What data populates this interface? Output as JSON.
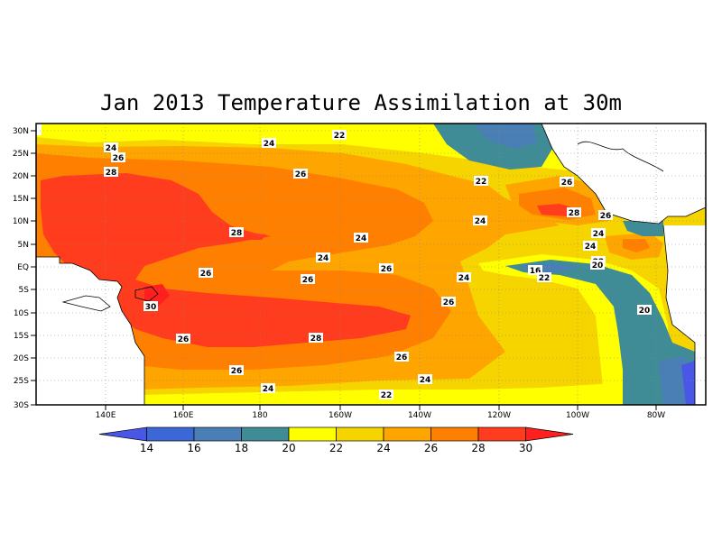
{
  "title": "Jan 2013 Temperature Assimilation at 30m",
  "map": {
    "lat_ticks": [
      "30N",
      "25N",
      "20N",
      "15N",
      "10N",
      "5N",
      "EQ",
      "5S",
      "10S",
      "15S",
      "20S",
      "25S",
      "30S"
    ],
    "lon_ticks": [
      "140E",
      "160E",
      "180",
      "160W",
      "140W",
      "120W",
      "100W",
      "80W"
    ],
    "contour_labels": [
      {
        "text": "24"
      },
      {
        "text": "26"
      },
      {
        "text": "28"
      },
      {
        "text": "24"
      },
      {
        "text": "22"
      },
      {
        "text": "26"
      },
      {
        "text": "22"
      },
      {
        "text": "26"
      },
      {
        "text": "28"
      },
      {
        "text": "24"
      },
      {
        "text": "24"
      },
      {
        "text": "28"
      },
      {
        "text": "26"
      },
      {
        "text": "24"
      },
      {
        "text": "24"
      },
      {
        "text": "24"
      },
      {
        "text": "16"
      },
      {
        "text": "22"
      },
      {
        "text": "22"
      },
      {
        "text": "20"
      },
      {
        "text": "26"
      },
      {
        "text": "26"
      },
      {
        "text": "26"
      },
      {
        "text": "24"
      },
      {
        "text": "30"
      },
      {
        "text": "26"
      },
      {
        "text": "28"
      },
      {
        "text": "26"
      },
      {
        "text": "20"
      },
      {
        "text": "26"
      },
      {
        "text": "24"
      },
      {
        "text": "24"
      },
      {
        "text": "22"
      },
      {
        "text": "26"
      }
    ]
  },
  "colorbar": {
    "labels": [
      "14",
      "16",
      "18",
      "20",
      "22",
      "24",
      "26",
      "28",
      "30"
    ],
    "colors": [
      "#4a57e6",
      "#3b68d6",
      "#4a7fb5",
      "#3f8c96",
      "#ffff00",
      "#f5d400",
      "#ffa500",
      "#ff7f00",
      "#ff3c1e",
      "#ff1f1f"
    ]
  },
  "palette": {
    "lt14": "#4a57e6",
    "c14_16": "#3b68d6",
    "c16_18": "#4a7fb5",
    "c18_20": "#3f8c96",
    "c20_22": "#ffff00",
    "c22_24": "#f5d400",
    "c24_26": "#ffa500",
    "c26_28": "#ff7f00",
    "c28_30": "#ff3c1e",
    "land": "#ffffff"
  }
}
